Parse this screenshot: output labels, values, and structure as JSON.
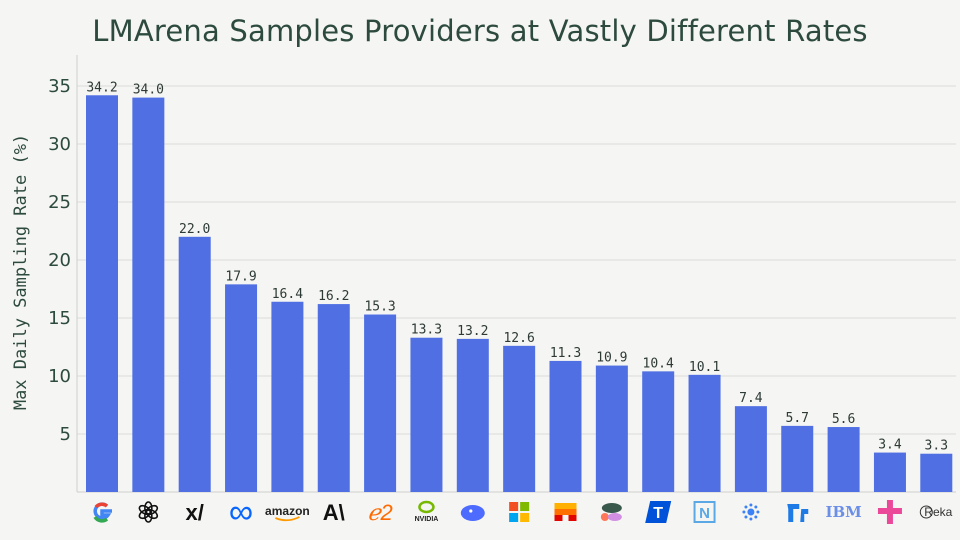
{
  "chart_data": {
    "type": "bar",
    "title": "LMArena Samples Providers at Vastly Different Rates",
    "xlabel": "",
    "ylabel": "Max Daily Sampling Rate (%)",
    "ylim": [
      0,
      37
    ],
    "yticks": [
      5,
      10,
      15,
      20,
      25,
      30,
      35
    ],
    "grid": true,
    "categories": [
      "Google",
      "OpenAI",
      "xAI",
      "Meta",
      "amazon",
      "Anthropic",
      "Alibaba",
      "NVIDIA",
      "DeepSeek",
      "Microsoft",
      "Mistral",
      "Cohere",
      "Tencent",
      "Nexusflow",
      "AI2",
      "01.AI",
      "IBM",
      "Zhipu",
      "Reka"
    ],
    "values": [
      34.2,
      34.0,
      22.0,
      17.9,
      16.4,
      16.2,
      15.3,
      13.3,
      13.2,
      12.6,
      11.3,
      10.9,
      10.4,
      10.1,
      7.4,
      5.7,
      5.6,
      3.4,
      3.3
    ],
    "value_labels": [
      "34.2",
      "34.0",
      "22.0",
      "17.9",
      "16.4",
      "16.2",
      "15.3",
      "13.3",
      "13.2",
      "12.6",
      "11.3",
      "10.9",
      "10.4",
      "10.1",
      "7.4",
      "5.7",
      "5.6",
      "3.4",
      "3.3"
    ],
    "bar_color": "#4f6fe3"
  }
}
